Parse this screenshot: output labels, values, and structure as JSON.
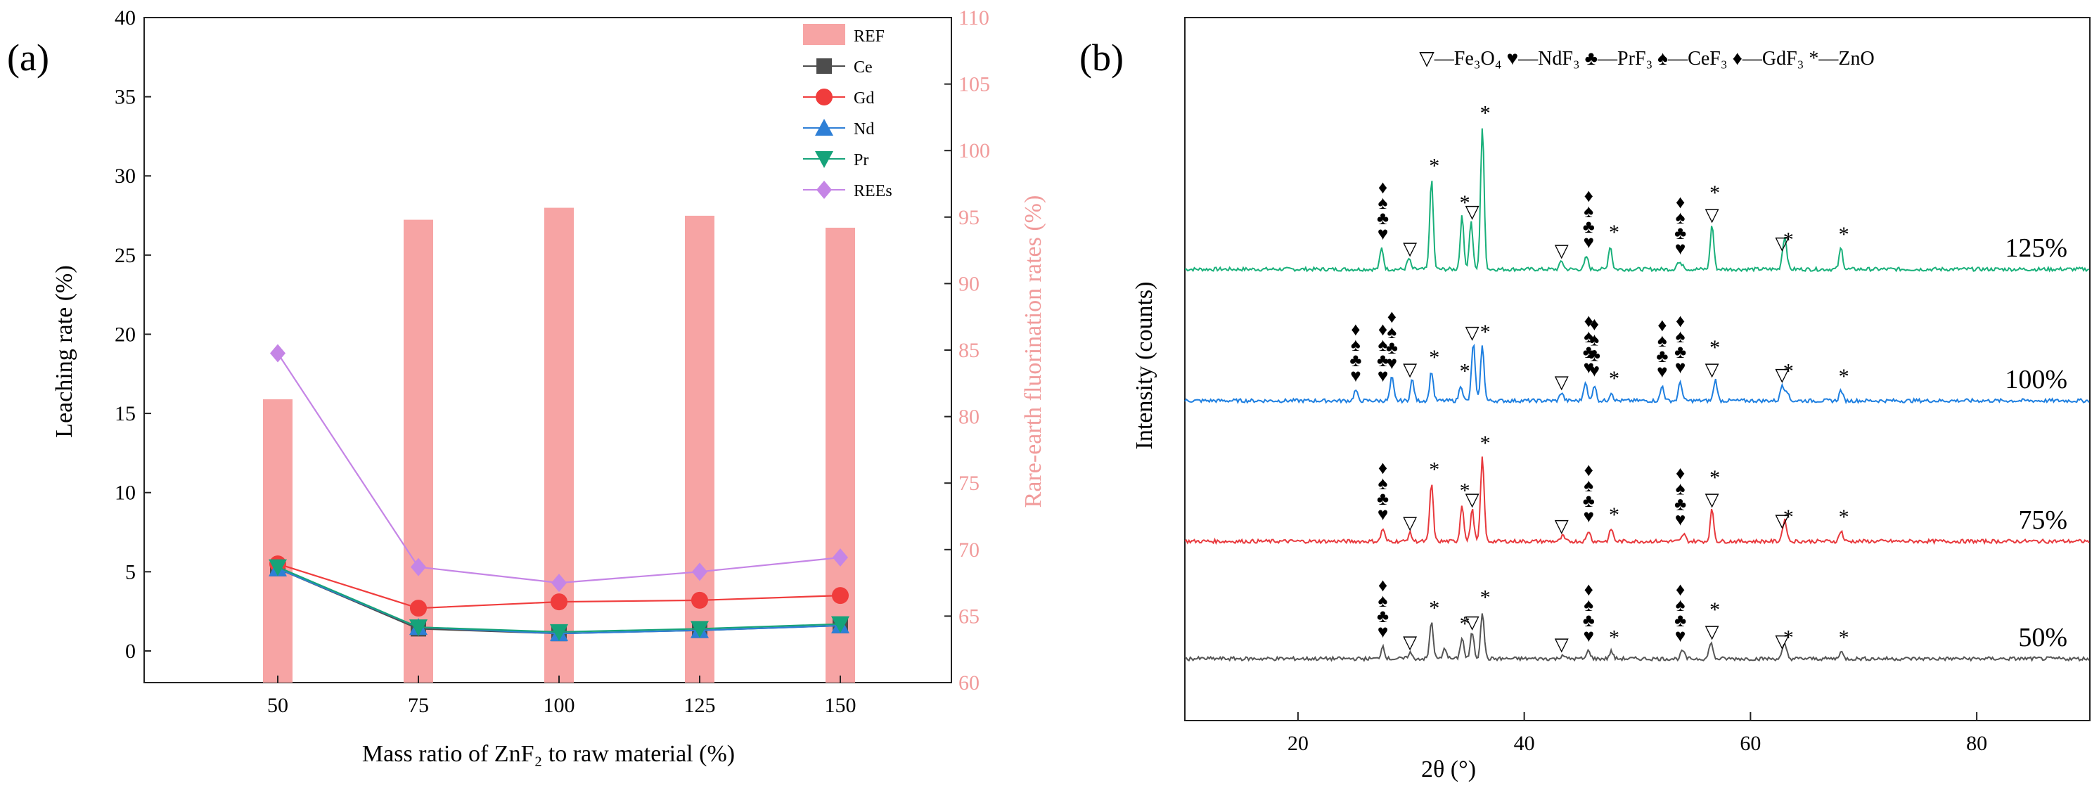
{
  "chart_data": [
    {
      "type": "bar+line",
      "panel_label": "(a)",
      "xlabel": "Mass ratio of ZnF₂ to raw material (%)",
      "ylabel": "Leaching rate (%)",
      "y2label": "Rare-earth fluorination rates (%)",
      "categories": [
        "50",
        "75",
        "100",
        "125",
        "150"
      ],
      "ylim": [
        -2,
        40
      ],
      "yticks": [
        "0",
        "5",
        "10",
        "15",
        "20",
        "25",
        "30",
        "35",
        "40"
      ],
      "y2lim": [
        60,
        110
      ],
      "y2ticks": [
        "60",
        "65",
        "70",
        "75",
        "80",
        "85",
        "90",
        "95",
        "100",
        "105",
        "110"
      ],
      "bars": {
        "name": "REF",
        "axis": "right",
        "color": "#f7a4a4",
        "values": [
          81.3,
          94.8,
          95.7,
          95.1,
          94.2
        ]
      },
      "series": [
        {
          "name": "Ce",
          "marker": "square",
          "color": "#4d4d4d",
          "values": [
            5.2,
            1.4,
            1.1,
            1.3,
            1.6
          ]
        },
        {
          "name": "Gd",
          "marker": "circle",
          "color": "#f03c3c",
          "values": [
            5.5,
            2.7,
            3.1,
            3.2,
            3.5
          ]
        },
        {
          "name": "Nd",
          "marker": "triangle-up",
          "color": "#2e7fd6",
          "values": [
            5.2,
            1.5,
            1.1,
            1.3,
            1.6
          ]
        },
        {
          "name": "Pr",
          "marker": "triangle-down",
          "color": "#16a37a",
          "values": [
            5.3,
            1.5,
            1.2,
            1.4,
            1.7
          ]
        },
        {
          "name": "REEs",
          "marker": "diamond",
          "color": "#c585e6",
          "values": [
            18.8,
            5.3,
            4.3,
            5.0,
            5.9
          ]
        }
      ],
      "legend": "top-right"
    },
    {
      "type": "line",
      "panel_label": "(b)",
      "xlabel": "2θ (°)",
      "ylabel": "Intensity (counts)",
      "xlim": [
        10,
        90
      ],
      "xticks": [
        "20",
        "40",
        "60",
        "80"
      ],
      "legend_text": "▽—Fe₃O₄ ♥—NdF₃ ♣—PrF₃ ♠—CeF₃ ♦—GdF₃ *—ZnO",
      "series": [
        {
          "name": "125%",
          "color": "#19b07a",
          "peaks": [
            [
              27.4,
              0.2
            ],
            [
              29.8,
              0.1
            ],
            [
              31.8,
              0.85
            ],
            [
              34.5,
              0.5
            ],
            [
              35.3,
              0.45
            ],
            [
              36.3,
              1.35
            ],
            [
              43.3,
              0.08
            ],
            [
              45.5,
              0.12
            ],
            [
              47.6,
              0.22
            ],
            [
              53.6,
              0.06
            ],
            [
              54.0,
              0.05
            ],
            [
              56.6,
              0.42
            ],
            [
              62.9,
              0.15
            ],
            [
              63.1,
              0.22
            ],
            [
              68.0,
              0.2
            ]
          ]
        },
        {
          "name": "100%",
          "color": "#1e7fe0",
          "peaks": [
            [
              25.1,
              0.1
            ],
            [
              28.3,
              0.22
            ],
            [
              30.1,
              0.2
            ],
            [
              31.8,
              0.28
            ],
            [
              34.4,
              0.15
            ],
            [
              35.5,
              0.55
            ],
            [
              36.3,
              0.52
            ],
            [
              43.3,
              0.08
            ],
            [
              45.4,
              0.18
            ],
            [
              46.2,
              0.15
            ],
            [
              47.7,
              0.08
            ],
            [
              52.2,
              0.14
            ],
            [
              53.8,
              0.18
            ],
            [
              56.9,
              0.2
            ],
            [
              62.8,
              0.15
            ],
            [
              63.2,
              0.1
            ],
            [
              68.0,
              0.1
            ]
          ]
        },
        {
          "name": "75%",
          "color": "#e8393d",
          "peaks": [
            [
              27.5,
              0.12
            ],
            [
              29.9,
              0.08
            ],
            [
              31.8,
              0.55
            ],
            [
              34.5,
              0.35
            ],
            [
              35.4,
              0.3
            ],
            [
              36.3,
              0.8
            ],
            [
              43.4,
              0.05
            ],
            [
              45.7,
              0.1
            ],
            [
              47.7,
              0.12
            ],
            [
              54.1,
              0.07
            ],
            [
              56.6,
              0.3
            ],
            [
              62.9,
              0.1
            ],
            [
              63.1,
              0.14
            ],
            [
              68.0,
              0.1
            ]
          ]
        },
        {
          "name": "50%",
          "color": "#555555",
          "peaks": [
            [
              27.5,
              0.12
            ],
            [
              29.9,
              0.06
            ],
            [
              31.8,
              0.35
            ],
            [
              33.0,
              0.1
            ],
            [
              34.5,
              0.2
            ],
            [
              35.4,
              0.25
            ],
            [
              36.3,
              0.45
            ],
            [
              43.4,
              0.04
            ],
            [
              45.7,
              0.08
            ],
            [
              47.7,
              0.07
            ],
            [
              54.0,
              0.08
            ],
            [
              56.5,
              0.16
            ],
            [
              62.9,
              0.07
            ],
            [
              63.1,
              0.09
            ],
            [
              68.0,
              0.07
            ]
          ]
        }
      ]
    }
  ]
}
